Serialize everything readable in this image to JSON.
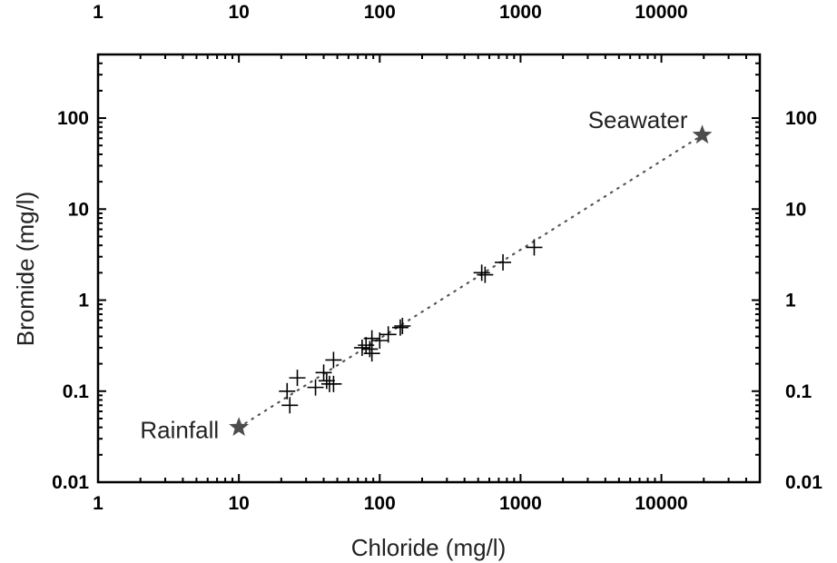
{
  "chart_data": {
    "type": "scatter",
    "xscale": "log",
    "yscale": "log",
    "xlim": [
      1,
      50000
    ],
    "ylim": [
      0.01,
      500
    ],
    "xlabel": "Chloride (mg/l)",
    "ylabel": "Bromide (mg/l)",
    "x_ticks": [
      "1",
      "10",
      "100",
      "1000",
      "10000"
    ],
    "y_ticks": [
      "0.01",
      "0.1",
      "1",
      "10",
      "100"
    ],
    "grid": false,
    "series": [
      {
        "marker": "plus",
        "color": "#000000",
        "points": [
          {
            "x": 22,
            "y": 0.1
          },
          {
            "x": 23,
            "y": 0.07
          },
          {
            "x": 26,
            "y": 0.14
          },
          {
            "x": 35,
            "y": 0.11
          },
          {
            "x": 40,
            "y": 0.16
          },
          {
            "x": 42,
            "y": 0.13
          },
          {
            "x": 44,
            "y": 0.12
          },
          {
            "x": 47,
            "y": 0.12
          },
          {
            "x": 47,
            "y": 0.22
          },
          {
            "x": 75,
            "y": 0.3
          },
          {
            "x": 80,
            "y": 0.32
          },
          {
            "x": 85,
            "y": 0.29
          },
          {
            "x": 88,
            "y": 0.26
          },
          {
            "x": 88,
            "y": 0.38
          },
          {
            "x": 100,
            "y": 0.36
          },
          {
            "x": 115,
            "y": 0.42
          },
          {
            "x": 140,
            "y": 0.5
          },
          {
            "x": 145,
            "y": 0.52
          },
          {
            "x": 530,
            "y": 2.0
          },
          {
            "x": 560,
            "y": 1.9
          },
          {
            "x": 750,
            "y": 2.6
          },
          {
            "x": 1250,
            "y": 3.8
          }
        ]
      },
      {
        "marker": "star",
        "color": "#4d4d4d",
        "points": [
          {
            "x": 10,
            "y": 0.04,
            "label": "Rainfall"
          },
          {
            "x": 19500,
            "y": 65,
            "label": "Seawater"
          }
        ]
      }
    ],
    "reference_line": {
      "style": "dotted",
      "from": {
        "x": 10,
        "y": 0.04
      },
      "to": {
        "x": 19500,
        "y": 65
      }
    }
  }
}
